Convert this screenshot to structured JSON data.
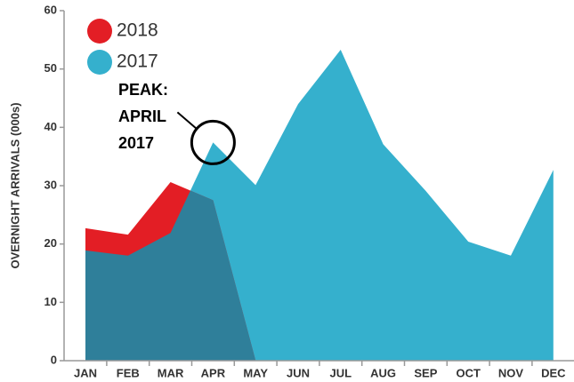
{
  "chart_data": {
    "type": "area",
    "categories": [
      "JAN",
      "FEB",
      "MAR",
      "APR",
      "MAY",
      "JUN",
      "JUL",
      "AUG",
      "SEP",
      "OCT",
      "NOV",
      "DEC"
    ],
    "series": [
      {
        "name": "2018",
        "color": "#e31e25",
        "values": [
          22.7,
          21.6,
          30.6,
          27.5,
          0,
          null,
          null,
          null,
          null,
          null,
          null,
          null
        ]
      },
      {
        "name": "2017",
        "color": "#35b0cd",
        "values": [
          18.9,
          18,
          21.9,
          37.4,
          30.1,
          44,
          53.3,
          37.1,
          29.1,
          20.4,
          18,
          32.7
        ]
      }
    ],
    "overlap_color": "#2f7f9a",
    "ylabel": "OVERNIGHT ARRIVALS (000s)",
    "ylim": [
      0,
      60
    ],
    "yticks": [
      0,
      10,
      20,
      30,
      40,
      50,
      60
    ],
    "annotation": {
      "lines": [
        "PEAK:",
        "APRIL",
        "2017"
      ],
      "series": 1,
      "index": 3
    }
  }
}
